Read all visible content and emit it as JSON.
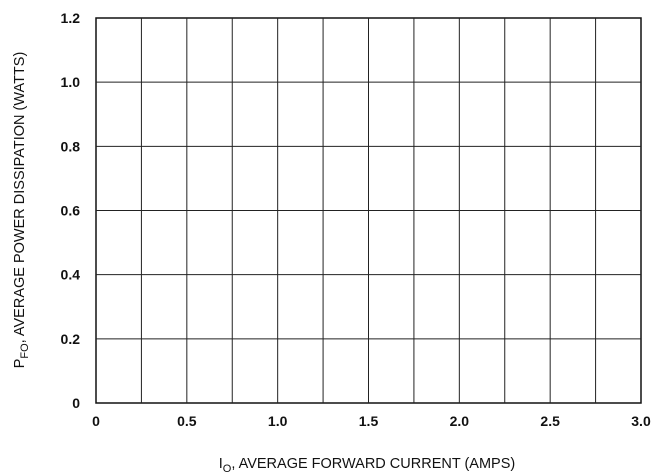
{
  "chart_data": {
    "type": "line",
    "title": "",
    "xlabel": {
      "prefix": "I",
      "subscript": "O",
      "text": ", AVERAGE FORWARD CURRENT (AMPS)"
    },
    "ylabel": {
      "prefix": "P",
      "subscript": "FO",
      "text": ", AVERAGE POWER DISSIPATION (WATTS)"
    },
    "x_ticks": [
      "0",
      "0.5",
      "1.0",
      "1.5",
      "2.0",
      "2.5",
      "3.0"
    ],
    "y_ticks": [
      "0",
      "0.2",
      "0.4",
      "0.6",
      "0.8",
      "1.0",
      "1.2"
    ],
    "xlim": [
      0,
      3.0
    ],
    "ylim": [
      0,
      1.2
    ],
    "grid": true,
    "x_grid_step": 0.25,
    "y_grid_step": 0.2,
    "series": [],
    "colors": {
      "grid": "#222222",
      "axis": "#111111"
    }
  }
}
